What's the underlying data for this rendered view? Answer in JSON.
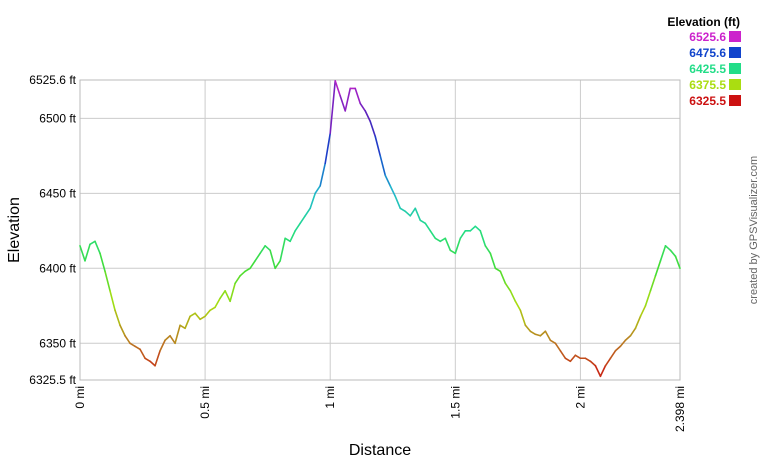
{
  "chart_data": {
    "type": "line",
    "xlabel": "Distance",
    "ylabel": "Elevation",
    "xlim": [
      0,
      2.398
    ],
    "ylim": [
      6325.5,
      6525.6
    ],
    "x_ticks": [
      {
        "value": 0,
        "label": "0 mi"
      },
      {
        "value": 0.5,
        "label": "0.5 mi"
      },
      {
        "value": 1,
        "label": "1 mi"
      },
      {
        "value": 1.5,
        "label": "1.5 mi"
      },
      {
        "value": 2,
        "label": "2 mi"
      },
      {
        "value": 2.398,
        "label": "2.398 mi"
      }
    ],
    "y_ticks": [
      {
        "value": 6325.5,
        "label": "6325.5 ft"
      },
      {
        "value": 6350,
        "label": "6350 ft"
      },
      {
        "value": 6400,
        "label": "6400 ft"
      },
      {
        "value": 6450,
        "label": "6450 ft"
      },
      {
        "value": 6500,
        "label": "6500 ft"
      },
      {
        "value": 6525.6,
        "label": "6525.6 ft"
      }
    ],
    "grid": true,
    "legend": {
      "title": "Elevation (ft)",
      "placement": "top-right",
      "entries": [
        {
          "label": "6525.6",
          "color": "#cc22cc"
        },
        {
          "label": "6475.6",
          "color": "#1144cc"
        },
        {
          "label": "6425.5",
          "color": "#22dd88"
        },
        {
          "label": "6375.5",
          "color": "#aadd11"
        },
        {
          "label": "6325.5",
          "color": "#cc1111"
        }
      ]
    },
    "color_stops": [
      {
        "value": 6325.5,
        "color": "#cc1111"
      },
      {
        "value": 6350,
        "color": "#bb7722"
      },
      {
        "value": 6375.5,
        "color": "#aadd11"
      },
      {
        "value": 6400,
        "color": "#44dd33"
      },
      {
        "value": 6425.5,
        "color": "#22dd88"
      },
      {
        "value": 6450,
        "color": "#22bbcc"
      },
      {
        "value": 6475.6,
        "color": "#1144cc"
      },
      {
        "value": 6500,
        "color": "#5522bb"
      },
      {
        "value": 6525.6,
        "color": "#cc22cc"
      }
    ],
    "x": [
      0,
      0.02,
      0.04,
      0.06,
      0.08,
      0.1,
      0.12,
      0.14,
      0.16,
      0.18,
      0.2,
      0.22,
      0.24,
      0.26,
      0.28,
      0.3,
      0.32,
      0.34,
      0.36,
      0.38,
      0.4,
      0.42,
      0.44,
      0.46,
      0.48,
      0.5,
      0.52,
      0.54,
      0.56,
      0.58,
      0.6,
      0.62,
      0.64,
      0.66,
      0.68,
      0.7,
      0.72,
      0.74,
      0.76,
      0.78,
      0.8,
      0.82,
      0.84,
      0.86,
      0.88,
      0.9,
      0.92,
      0.94,
      0.96,
      0.98,
      1.0,
      1.02,
      1.04,
      1.06,
      1.08,
      1.1,
      1.12,
      1.14,
      1.16,
      1.18,
      1.2,
      1.22,
      1.24,
      1.26,
      1.28,
      1.3,
      1.32,
      1.34,
      1.36,
      1.38,
      1.4,
      1.42,
      1.44,
      1.46,
      1.48,
      1.5,
      1.52,
      1.54,
      1.56,
      1.58,
      1.6,
      1.62,
      1.64,
      1.66,
      1.68,
      1.7,
      1.72,
      1.74,
      1.76,
      1.78,
      1.8,
      1.82,
      1.84,
      1.86,
      1.88,
      1.9,
      1.92,
      1.94,
      1.96,
      1.98,
      2.0,
      2.02,
      2.04,
      2.06,
      2.08,
      2.1,
      2.12,
      2.14,
      2.16,
      2.18,
      2.2,
      2.22,
      2.24,
      2.26,
      2.28,
      2.3,
      2.32,
      2.34,
      2.36,
      2.38,
      2.398
    ],
    "y": [
      6415,
      6405,
      6416,
      6418,
      6410,
      6398,
      6385,
      6372,
      6362,
      6355,
      6350,
      6348,
      6346,
      6340,
      6338,
      6335,
      6345,
      6352,
      6355,
      6350,
      6362,
      6360,
      6368,
      6370,
      6366,
      6368,
      6372,
      6374,
      6380,
      6385,
      6378,
      6390,
      6395,
      6398,
      6400,
      6405,
      6410,
      6415,
      6412,
      6400,
      6405,
      6420,
      6418,
      6425,
      6430,
      6435,
      6440,
      6450,
      6455,
      6470,
      6490,
      6525,
      6515,
      6505,
      6520,
      6520,
      6510,
      6505,
      6498,
      6488,
      6475,
      6462,
      6455,
      6448,
      6440,
      6438,
      6435,
      6440,
      6432,
      6430,
      6425,
      6420,
      6418,
      6420,
      6412,
      6410,
      6420,
      6425,
      6425,
      6428,
      6425,
      6415,
      6410,
      6400,
      6398,
      6390,
      6385,
      6378,
      6372,
      6362,
      6358,
      6356,
      6355,
      6358,
      6352,
      6350,
      6345,
      6340,
      6338,
      6342,
      6340,
      6340,
      6338,
      6335,
      6328,
      6335,
      6340,
      6345,
      6348,
      6352,
      6355,
      6360,
      6368,
      6375,
      6385,
      6395,
      6405,
      6415,
      6412,
      6408,
      6400
    ]
  },
  "credit": "created by GPSVisualizer.com"
}
